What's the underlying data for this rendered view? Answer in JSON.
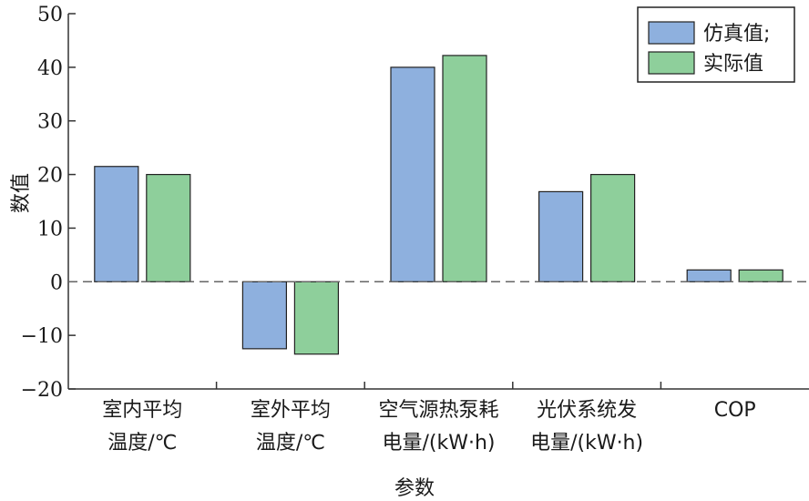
{
  "chart_data": {
    "type": "bar",
    "ylabel": "数值",
    "xlabel": "参数",
    "ylim": [
      -20,
      50
    ],
    "yticks": [
      -20,
      -10,
      0,
      10,
      20,
      30,
      40,
      50
    ],
    "ytick_labels": [
      "−20",
      "−10",
      "0",
      "10",
      "20",
      "30",
      "40",
      "50"
    ],
    "categories": [
      {
        "lines": [
          "室内平均",
          "温度/℃"
        ]
      },
      {
        "lines": [
          "室外平均",
          "温度/℃"
        ]
      },
      {
        "lines": [
          "空气源热泵耗",
          "电量/(kW·h)"
        ]
      },
      {
        "lines": [
          "光伏系统发",
          "电量/(kW·h)"
        ]
      },
      {
        "lines": [
          "COP"
        ]
      }
    ],
    "series": [
      {
        "name": "仿真值;",
        "color": "#8eb0de",
        "values": [
          21.5,
          -12.5,
          40,
          16.8,
          2.2
        ]
      },
      {
        "name": "实际值",
        "color": "#8ecf9b",
        "values": [
          20,
          -13.5,
          42.2,
          20,
          2.2
        ]
      }
    ],
    "legend_position": "top-right",
    "zero_line": "dashed"
  }
}
